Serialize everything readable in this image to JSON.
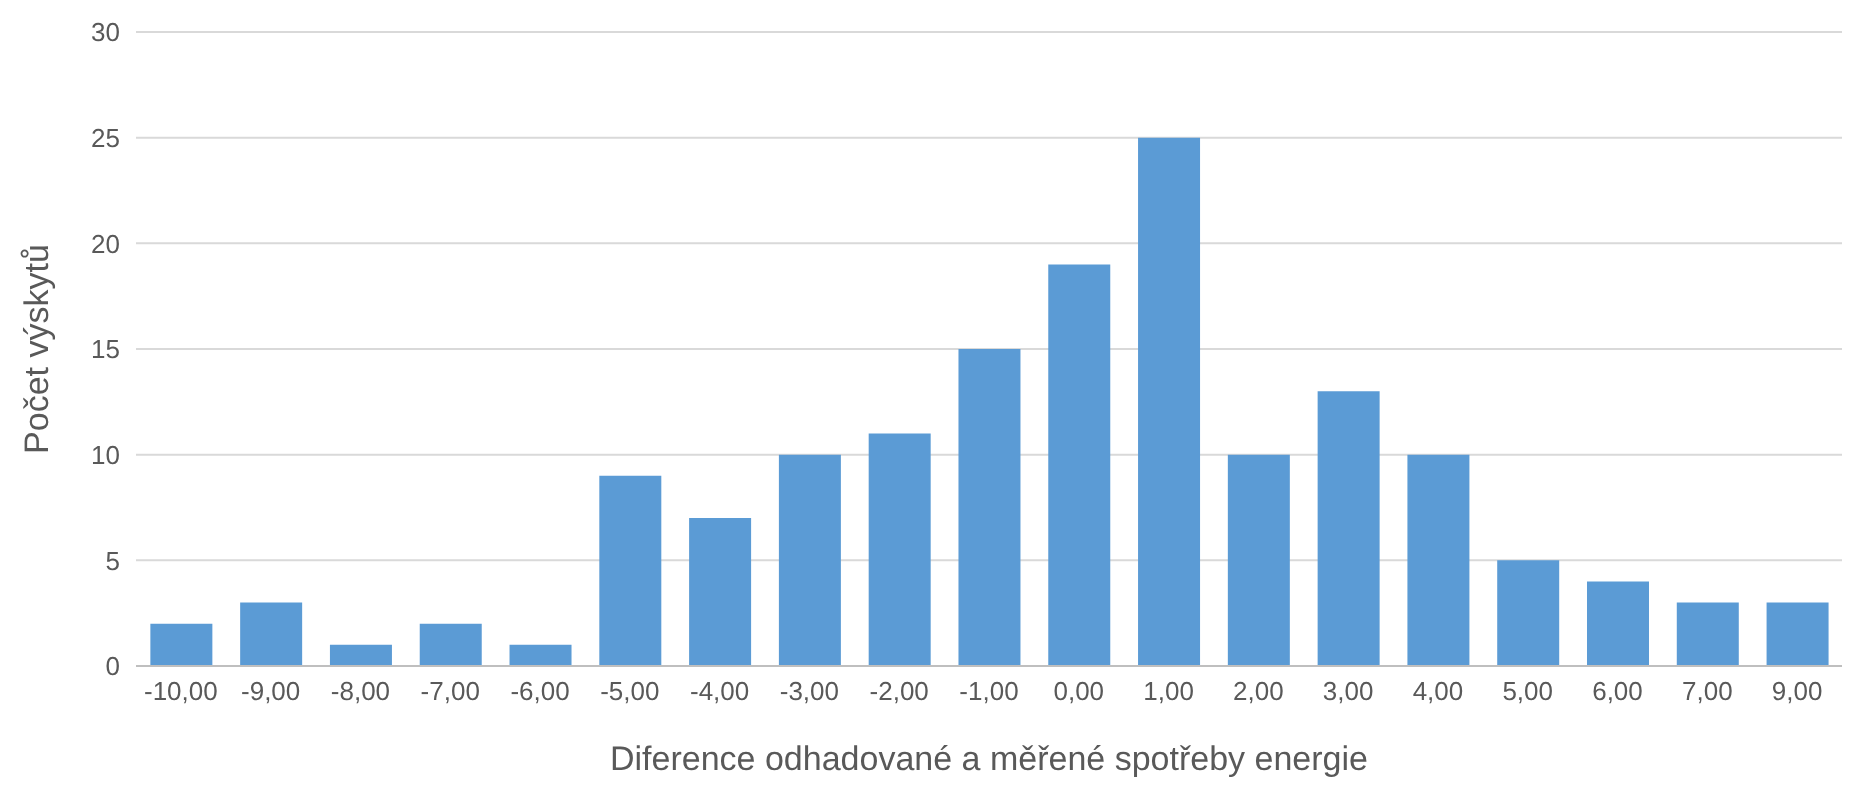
{
  "chart_data": {
    "type": "bar",
    "xlabel": "Diference odhadované a měřené spotřeby energie",
    "ylabel": "Počet výskytů",
    "categories": [
      "-10,00",
      "-9,00",
      "-8,00",
      "-7,00",
      "-6,00",
      "-5,00",
      "-4,00",
      "-3,00",
      "-2,00",
      "-1,00",
      "0,00",
      "1,00",
      "2,00",
      "3,00",
      "4,00",
      "5,00",
      "6,00",
      "7,00",
      "9,00"
    ],
    "values": [
      2,
      3,
      1,
      2,
      1,
      9,
      7,
      10,
      11,
      15,
      19,
      25,
      10,
      13,
      10,
      5,
      4,
      3,
      3
    ],
    "color": "#5b9bd5",
    "ylim": [
      0,
      30
    ],
    "yticks": [
      0,
      5,
      10,
      15,
      20,
      25,
      30
    ],
    "grid": "y"
  }
}
